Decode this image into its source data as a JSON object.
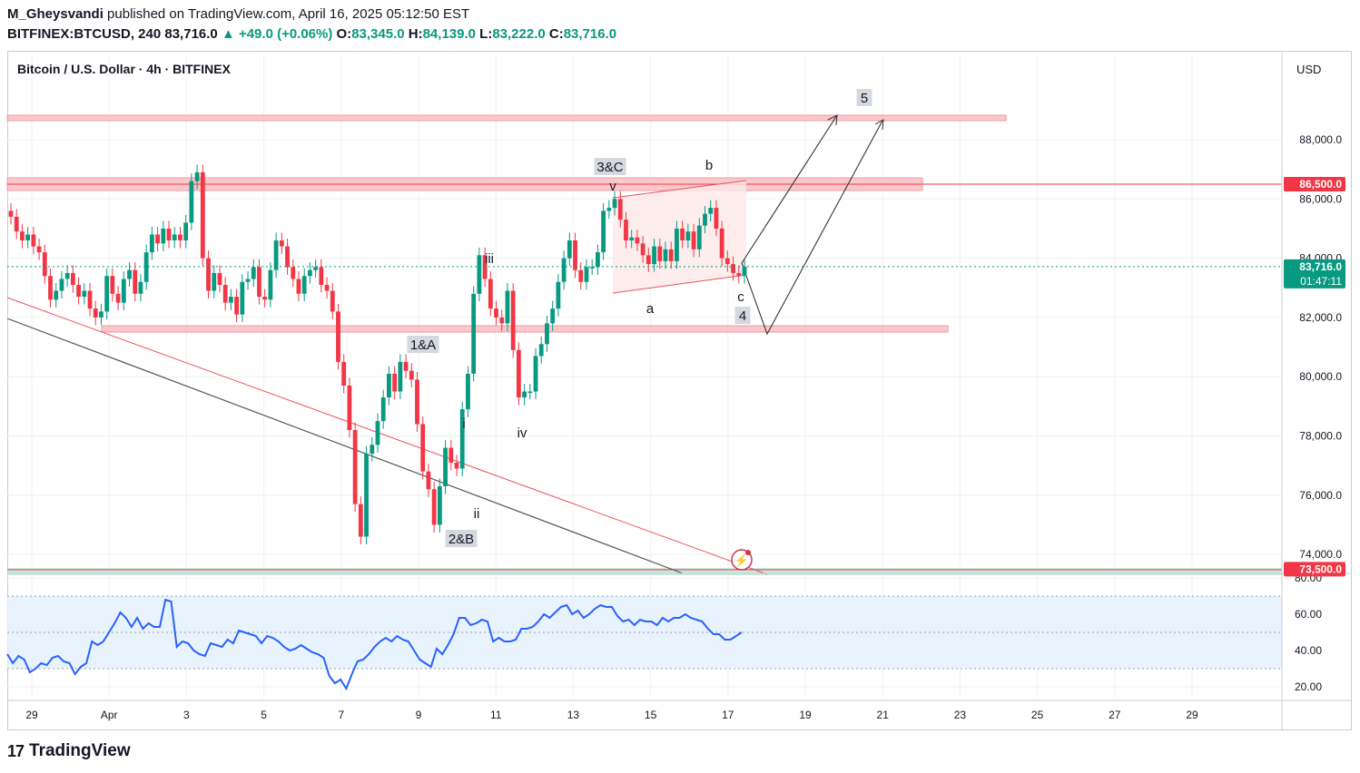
{
  "header": {
    "author": "M_Gheysvandi",
    "published": "published on TradingView.com, April 16, 2025 05:12:50 EST",
    "symbol": "BITFINEX:BTCUSD, 240",
    "last": "83,716.0",
    "change": "▲ +49.0 (+0.06%)",
    "o_label": "O:",
    "o": "83,345.0",
    "h_label": "H:",
    "h": "84,139.0",
    "l_label": "L:",
    "l": "83,222.0",
    "c_label": "C:",
    "c": "83,716.0"
  },
  "chart_title": "Bitcoin / U.S. Dollar · 4h · BITFINEX",
  "currency": "USD",
  "footer": {
    "brand": "TradingView"
  },
  "colors": {
    "up": "#089981",
    "down": "#f23645",
    "rsi": "#2962ff",
    "zone": "#f8c2c6",
    "line_red": "#e8545f",
    "line_gray": "#555555"
  },
  "chart_data": [
    {
      "type": "candlestick",
      "title": "Bitcoin / U.S. Dollar · 4h · BITFINEX",
      "x_ticks": [
        "29",
        "Apr",
        "3",
        "5",
        "7",
        "9",
        "11",
        "13",
        "15",
        "17",
        "19",
        "21",
        "23",
        "25",
        "27",
        "29"
      ],
      "y_ticks": [
        "88,000.0",
        "86,000.0",
        "84,000.0",
        "82,000.0",
        "80,000.0",
        "78,000.0",
        "76,000.0",
        "74,000.0"
      ],
      "ylim": [
        73300,
        90500
      ],
      "price_labels": [
        {
          "value": 86500,
          "text": "86,500.0",
          "color": "#f23645"
        },
        {
          "value": 83716,
          "text": "83,716.0",
          "sub": "01:47:11",
          "color": "#089981"
        },
        {
          "value": 73500,
          "text": "73,500.0",
          "color": "#f23645"
        }
      ],
      "closes": [
        85400,
        84900,
        84600,
        84800,
        84400,
        84200,
        83400,
        82600,
        82900,
        83300,
        83500,
        83100,
        82700,
        82900,
        82300,
        82000,
        82200,
        83400,
        82800,
        82500,
        83300,
        83600,
        82800,
        83200,
        84200,
        84800,
        84500,
        85000,
        84600,
        84800,
        84600,
        85200,
        86600,
        86900,
        84000,
        82900,
        83500,
        83100,
        82500,
        82700,
        82100,
        83200,
        83300,
        83700,
        82700,
        82600,
        83600,
        84600,
        84400,
        83700,
        83300,
        82800,
        83400,
        83600,
        83700,
        83100,
        82900,
        82200,
        80500,
        79700,
        78200,
        75700,
        74600,
        77400,
        77700,
        78500,
        79300,
        80100,
        79500,
        80500,
        80200,
        79900,
        78400,
        76800,
        76200,
        75000,
        76300,
        77600,
        77100,
        76900,
        78900,
        80100,
        82800,
        84100,
        83300,
        82300,
        82000,
        81800,
        82900,
        80900,
        79300,
        79500,
        79500,
        80700,
        81100,
        81800,
        82300,
        83200,
        84000,
        84600,
        83600,
        83200,
        83700,
        83700,
        84200,
        85600,
        85700,
        86000,
        85300,
        84600,
        84700,
        84500,
        84100,
        83800,
        84400,
        83900,
        84300,
        83900,
        85000,
        84600,
        84900,
        84300,
        85100,
        85500,
        85700,
        85000,
        84000,
        83800,
        83500,
        83400,
        83716
      ]
    },
    {
      "type": "line",
      "title": "RSI",
      "y_ticks": [
        "80.00",
        "60.00",
        "40.00",
        "20.00"
      ],
      "ylim": [
        16,
        82
      ],
      "bands": [
        70,
        50,
        30
      ],
      "values": [
        38,
        33,
        37,
        35,
        28,
        30,
        33,
        32,
        36,
        37,
        34,
        33,
        27,
        31,
        33,
        45,
        43,
        45,
        50,
        55,
        61,
        58,
        53,
        58,
        52,
        55,
        53,
        53,
        68,
        67,
        42,
        45,
        44,
        40,
        38,
        37,
        44,
        43,
        42,
        46,
        44,
        51,
        50,
        49,
        48,
        44,
        48,
        47,
        45,
        42,
        40,
        41,
        43,
        41,
        39,
        38,
        36,
        26,
        22,
        24,
        19,
        27,
        34,
        35,
        38,
        42,
        45,
        47,
        45,
        48,
        46,
        45,
        40,
        35,
        33,
        31,
        41,
        38,
        43,
        49,
        58,
        58,
        54,
        55,
        57,
        56,
        45,
        47,
        45,
        45,
        46,
        52,
        52,
        53,
        56,
        60,
        58,
        61,
        64,
        65,
        60,
        62,
        58,
        60,
        63,
        65,
        64,
        64,
        59,
        56,
        57,
        54,
        57,
        56,
        56,
        54,
        58,
        56,
        58,
        58,
        60,
        58,
        57,
        56,
        52,
        49,
        49,
        46,
        46,
        48,
        50
      ],
      "x_ticks_note": "shares x axis with price chart"
    }
  ],
  "annotations": {
    "wave_labels": [
      "5",
      "3&C",
      "b",
      "v",
      "iii",
      "1&A",
      "i",
      "ii",
      "2&B",
      "iv",
      "a",
      "c",
      "4"
    ]
  }
}
